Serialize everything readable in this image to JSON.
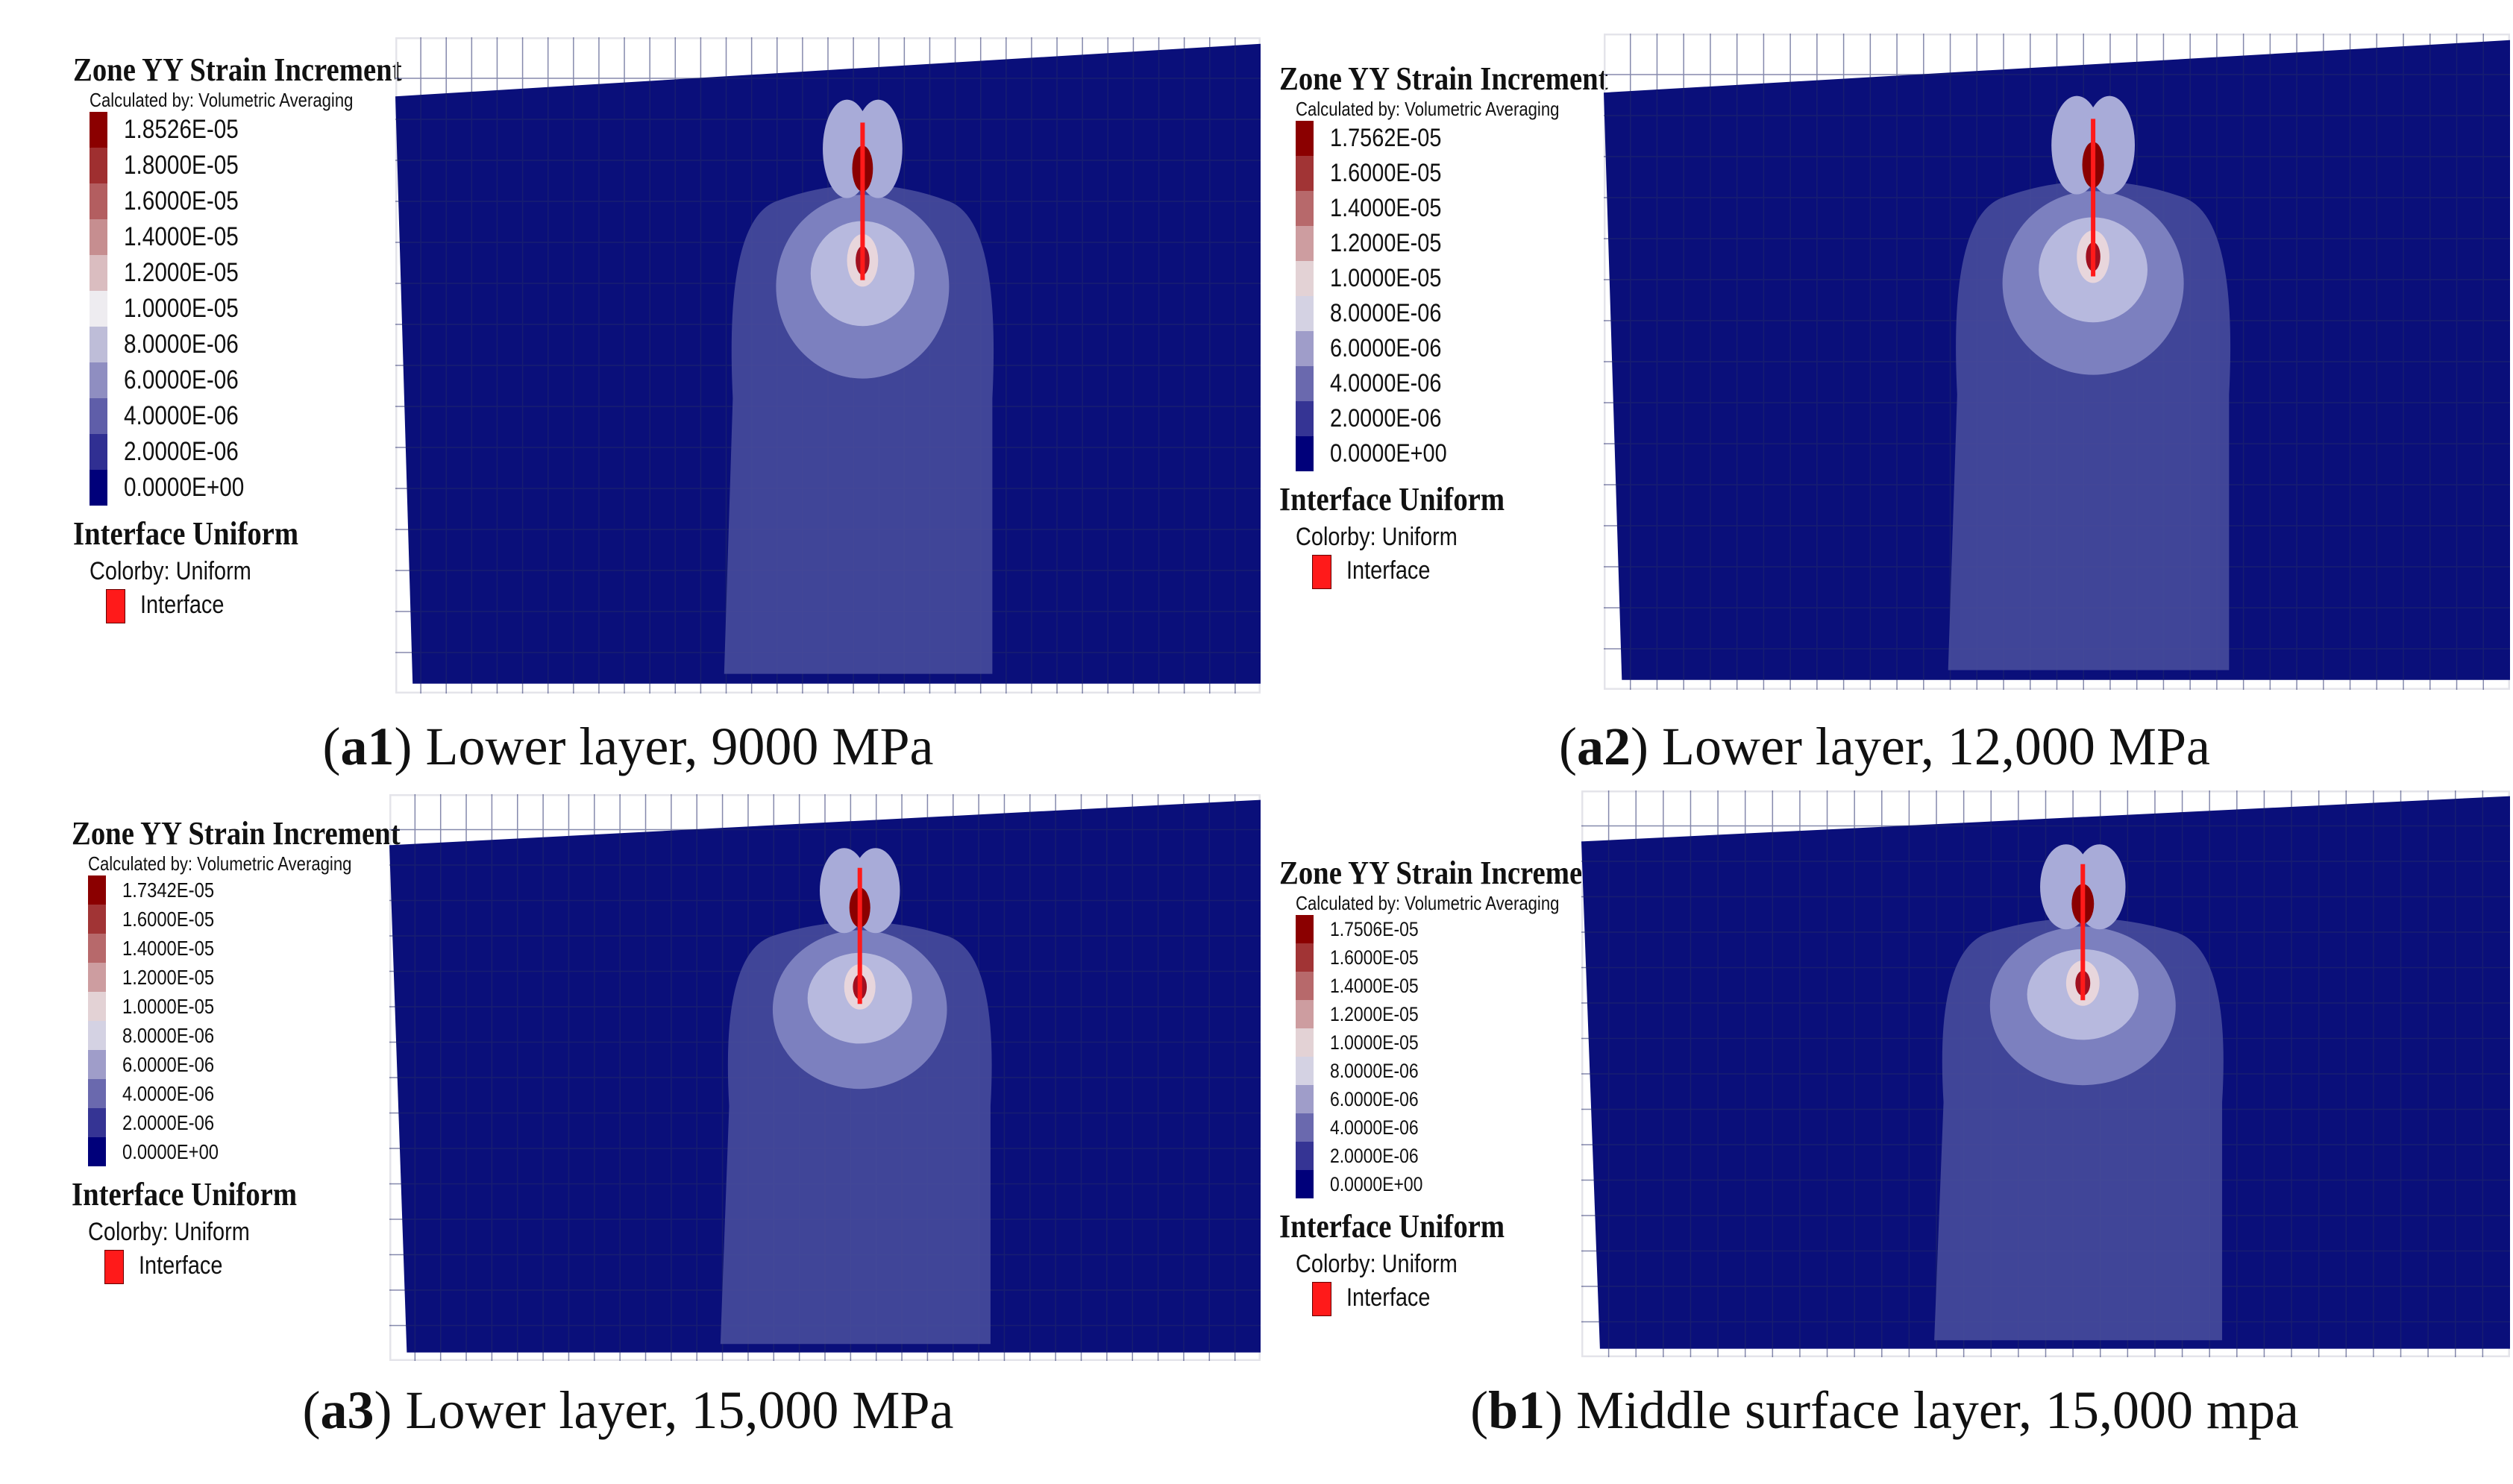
{
  "legend_title": "Zone YY Strain Increment",
  "legend_subtitle": "Calculated by: Volumetric Averaging",
  "interface_title": "Interface Uniform",
  "interface_colorby": "Colorby: Uniform",
  "interface_label": "Interface",
  "colors": {
    "background_zone": "#0a0f7a",
    "interface": "#ff1a1a",
    "scale_low": "#00007a",
    "scale_high": "#8b0000"
  },
  "panels": [
    {
      "id": "a1",
      "caption_tag": "a1",
      "caption_text": ") Lower layer, 9000 MPa",
      "legend_values": [
        "1.8526E-05",
        "1.8000E-05",
        "1.6000E-05",
        "1.4000E-05",
        "1.2000E-05",
        "1.0000E-05",
        "8.0000E-06",
        "6.0000E-06",
        "4.0000E-06",
        "2.0000E-06",
        "0.0000E+00"
      ]
    },
    {
      "id": "a2",
      "caption_tag": "a2",
      "caption_text": ") Lower layer, 12,000 MPa",
      "legend_values": [
        "1.7562E-05",
        "1.6000E-05",
        "1.4000E-05",
        "1.2000E-05",
        "1.0000E-05",
        "8.0000E-06",
        "6.0000E-06",
        "4.0000E-06",
        "2.0000E-06",
        "0.0000E+00"
      ]
    },
    {
      "id": "a3",
      "caption_tag": "a3",
      "caption_text": ") Lower layer, 15,000 MPa",
      "legend_values": [
        "1.7342E-05",
        "1.6000E-05",
        "1.4000E-05",
        "1.2000E-05",
        "1.0000E-05",
        "8.0000E-06",
        "6.0000E-06",
        "4.0000E-06",
        "2.0000E-06",
        "0.0000E+00"
      ]
    },
    {
      "id": "b1",
      "caption_tag": "b1",
      "caption_text": ") Middle surface layer, 15,000 mpa",
      "legend_values": [
        "1.7506E-05",
        "1.6000E-05",
        "1.4000E-05",
        "1.2000E-05",
        "1.0000E-05",
        "8.0000E-06",
        "6.0000E-06",
        "4.0000E-06",
        "2.0000E-06",
        "0.0000E+00"
      ]
    }
  ]
}
